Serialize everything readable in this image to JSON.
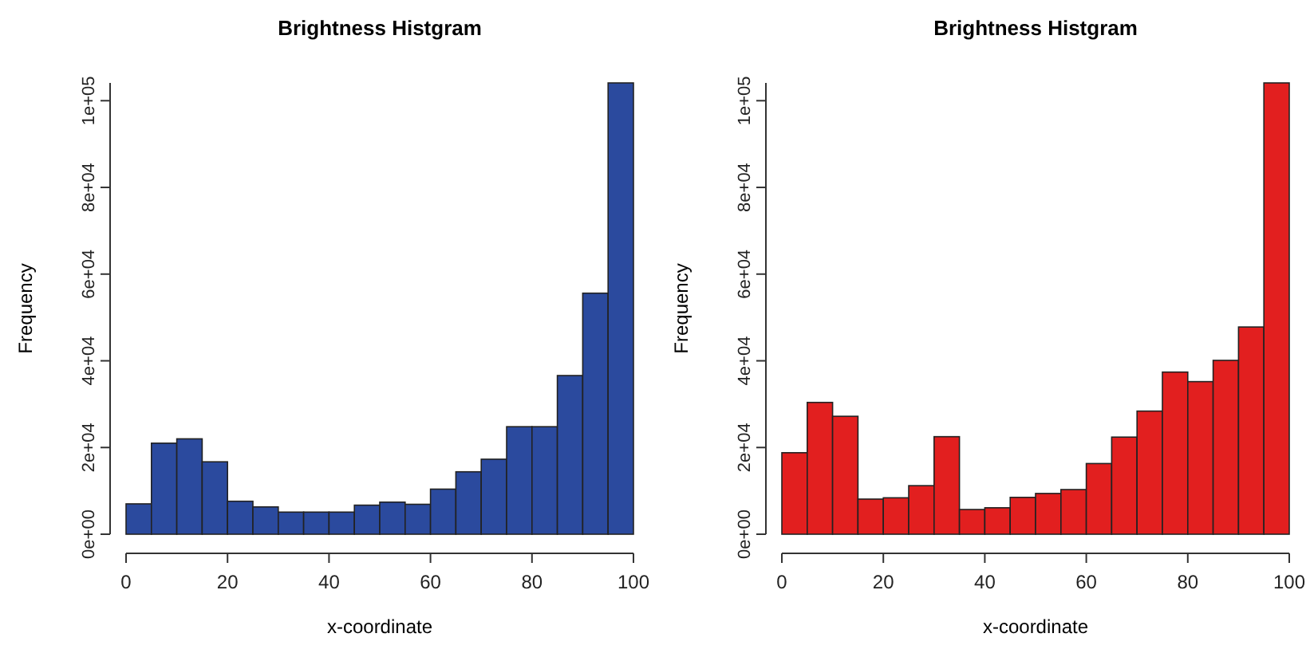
{
  "chart_data": [
    {
      "type": "histogram",
      "title": "Brightness Histgram",
      "xlabel": "x-coordinate",
      "ylabel": "Frequency",
      "color": "#2b4a9e",
      "bins": [
        0,
        5,
        10,
        15,
        20,
        25,
        30,
        35,
        40,
        45,
        50,
        55,
        60,
        65,
        70,
        75,
        80,
        85,
        90,
        95,
        100
      ],
      "values": [
        7000,
        21000,
        22000,
        16700,
        7600,
        6300,
        5100,
        5100,
        5100,
        6700,
        7400,
        6900,
        10400,
        14400,
        17300,
        24800,
        24800,
        36600,
        55600,
        104100
      ],
      "xlim": [
        0,
        100
      ],
      "xticks": [
        0,
        20,
        40,
        60,
        80,
        100
      ],
      "ylim": [
        0,
        104100
      ],
      "yticks": [
        {
          "value": 0,
          "label": "0e+00"
        },
        {
          "value": 20000,
          "label": "2e+04"
        },
        {
          "value": 40000,
          "label": "4e+04"
        },
        {
          "value": 60000,
          "label": "6e+04"
        },
        {
          "value": 80000,
          "label": "8e+04"
        },
        {
          "value": 100000,
          "label": "1e+05"
        }
      ],
      "grid": false
    },
    {
      "type": "histogram",
      "title": "Brightness Histgram",
      "xlabel": "x-coordinate",
      "ylabel": "Frequency",
      "color": "#e21f1f",
      "bins": [
        0,
        5,
        10,
        15,
        20,
        25,
        30,
        35,
        40,
        45,
        50,
        55,
        60,
        65,
        70,
        75,
        80,
        85,
        90,
        95,
        100
      ],
      "values": [
        18800,
        30400,
        27200,
        8100,
        8400,
        11200,
        22500,
        5700,
        6100,
        8500,
        9400,
        10300,
        16300,
        22400,
        28400,
        37400,
        35200,
        40100,
        47800,
        104100
      ],
      "xlim": [
        0,
        100
      ],
      "xticks": [
        0,
        20,
        40,
        60,
        80,
        100
      ],
      "ylim": [
        0,
        104100
      ],
      "yticks": [
        {
          "value": 0,
          "label": "0e+00"
        },
        {
          "value": 20000,
          "label": "2e+04"
        },
        {
          "value": 40000,
          "label": "4e+04"
        },
        {
          "value": 60000,
          "label": "6e+04"
        },
        {
          "value": 80000,
          "label": "8e+04"
        },
        {
          "value": 100000,
          "label": "1e+05"
        }
      ],
      "grid": false
    }
  ]
}
